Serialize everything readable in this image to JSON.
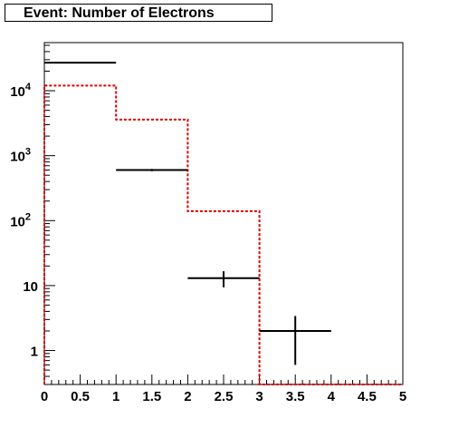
{
  "chart_data": {
    "type": "histogram",
    "title": "Event: Number of Electrons",
    "xlabel": "",
    "ylabel": "",
    "x_range": [
      0,
      5
    ],
    "y_range": [
      0.3,
      55000
    ],
    "y_scale": "log",
    "x_ticks": [
      "0",
      "0.5",
      "1",
      "1.5",
      "2",
      "2.5",
      "3",
      "3.5",
      "4",
      "4.5",
      "5"
    ],
    "y_ticks": [
      {
        "value": 1,
        "base": "1",
        "exp": ""
      },
      {
        "value": 10,
        "base": "10",
        "exp": ""
      },
      {
        "value": 100,
        "base": "10",
        "exp": "2"
      },
      {
        "value": 1000,
        "base": "10",
        "exp": "3"
      },
      {
        "value": 10000,
        "base": "10",
        "exp": "4"
      }
    ],
    "data_points": [
      {
        "x": 0.5,
        "xerr": 0.5,
        "y": 27000,
        "yerr": 0
      },
      {
        "x": 1.5,
        "xerr": 0.5,
        "y": 600,
        "yerr": 24
      },
      {
        "x": 2.5,
        "xerr": 0.5,
        "y": 13,
        "yerr": 3.6
      },
      {
        "x": 3.5,
        "xerr": 0.5,
        "y": 2,
        "yerr": 1.4
      }
    ],
    "histogram": {
      "color": "#dd0000",
      "style": "dashed",
      "bin_edges": [
        0,
        1,
        2,
        3,
        4,
        5
      ],
      "values": [
        12000,
        3600,
        140,
        0,
        0
      ]
    },
    "grid": false,
    "legend": "none"
  }
}
